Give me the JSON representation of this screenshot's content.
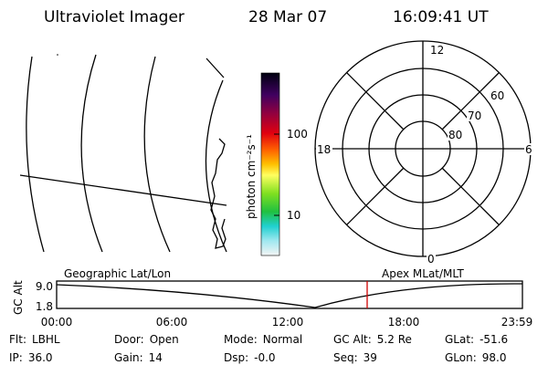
{
  "header": {
    "title": "Ultraviolet Imager",
    "date": "28 Mar 07",
    "time": "16:09:41 UT"
  },
  "colorbar": {
    "label": "photon cm⁻²s⁻¹",
    "ticks": [
      "100",
      "10"
    ]
  },
  "polar": {
    "mlt_labels": [
      "12",
      "18",
      "6",
      "0"
    ],
    "lat_labels": [
      "60",
      "70",
      "80"
    ]
  },
  "timeline": {
    "axis_label": "GC Alt",
    "y_labels": [
      "9.0",
      "1.8"
    ],
    "left_title": "Geographic Lat/Lon",
    "right_title": "Apex MLat/MLT",
    "time_labels": [
      "00:00",
      "06:00",
      "12:00",
      "18:00",
      "23:59"
    ]
  },
  "status": [
    [
      {
        "label": "Flt:",
        "value": "LBHL"
      },
      {
        "label": "Door:",
        "value": "Open"
      },
      {
        "label": "Mode:",
        "value": "Normal"
      },
      {
        "label": "GC Alt:",
        "value": "5.2 Re"
      },
      {
        "label": "GLat:",
        "value": "-51.6"
      }
    ],
    [
      {
        "label": "IP:",
        "value": "36.0"
      },
      {
        "label": "Gain:",
        "value": "14"
      },
      {
        "label": "Dsp:",
        "value": "-0.0"
      },
      {
        "label": "Seq:",
        "value": "39"
      },
      {
        "label": "GLon:",
        "value": "98.0"
      }
    ]
  ]
}
